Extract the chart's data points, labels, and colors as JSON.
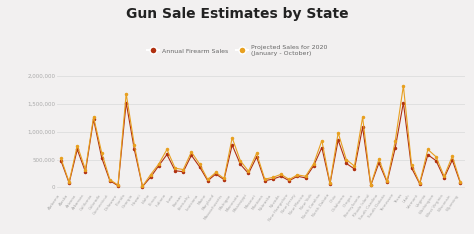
{
  "title": "Gun Sale Estimates by State",
  "title_fontsize": 10,
  "background_color": "#f2f0f0",
  "legend1_label": "Annual Firearm Sales",
  "legend2_label": "Projected Sales for 2020",
  "legend2_sublabel": "(January - October)",
  "line1_color": "#b03010",
  "line2_color": "#e8a020",
  "ylim": [
    -80000,
    2100000
  ],
  "yticks": [
    0,
    500000,
    1000000,
    1500000,
    2000000
  ],
  "ytick_labels": [
    "0",
    "500,000",
    "1,000,000",
    "1,500,000",
    "2,000,000"
  ],
  "states": [
    "Alabama",
    "Alaska",
    "Arizona",
    "Arkansas",
    "California",
    "Colorado",
    "Connecticut",
    "Delaware",
    "Florida",
    "Georgia",
    "Hawaii",
    "Idaho",
    "Illinois",
    "Indiana",
    "Iowa",
    "Kansas",
    "Kentucky",
    "Louisiana",
    "Maine",
    "Maryland",
    "Massachusetts",
    "Michigan",
    "Minnesota",
    "Mississippi",
    "Missouri",
    "Montana",
    "Nebraska",
    "Nevada",
    "New Hampshire",
    "New Jersey",
    "New Mexico",
    "New York",
    "North Carolina",
    "North Dakota",
    "Ohio",
    "Oklahoma",
    "Oregon",
    "Pennsylvania",
    "Rhode Island",
    "South Carolina",
    "South Dakota",
    "Tennessee",
    "Texas",
    "Utah",
    "Vermont",
    "Virginia",
    "Washington",
    "West Virginia",
    "Wisconsin",
    "Wyoming"
  ],
  "annual_sales": [
    480000,
    80000,
    680000,
    280000,
    1220000,
    530000,
    120000,
    30000,
    1520000,
    680000,
    15000,
    185000,
    390000,
    590000,
    300000,
    280000,
    575000,
    370000,
    120000,
    240000,
    140000,
    760000,
    415000,
    250000,
    545000,
    120000,
    150000,
    200000,
    120000,
    200000,
    170000,
    390000,
    715000,
    65000,
    850000,
    430000,
    330000,
    1080000,
    35000,
    440000,
    95000,
    705000,
    1520000,
    350000,
    65000,
    585000,
    480000,
    170000,
    490000,
    75000
  ],
  "projected_sales": [
    520000,
    95000,
    750000,
    320000,
    1260000,
    620000,
    140000,
    42000,
    1680000,
    760000,
    20000,
    230000,
    420000,
    680000,
    345000,
    320000,
    635000,
    420000,
    142000,
    270000,
    160000,
    890000,
    480000,
    290000,
    610000,
    148000,
    180000,
    235000,
    142000,
    225000,
    200000,
    425000,
    840000,
    78000,
    980000,
    498000,
    382000,
    1260000,
    43000,
    505000,
    112000,
    830000,
    1820000,
    410000,
    78000,
    680000,
    550000,
    200000,
    560000,
    92000
  ]
}
